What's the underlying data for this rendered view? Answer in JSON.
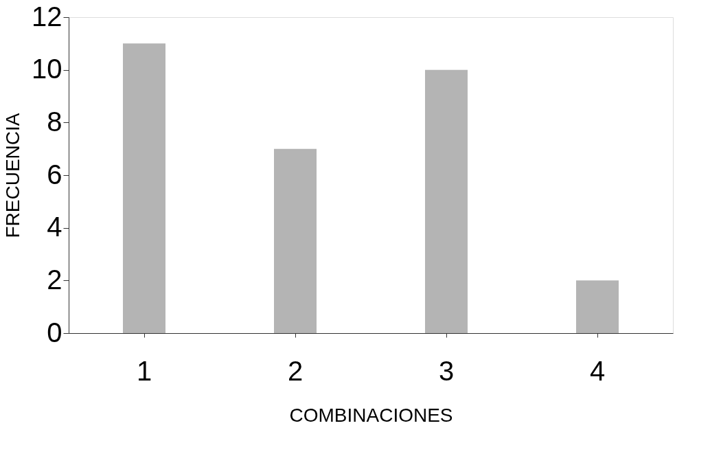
{
  "chart_data": {
    "type": "bar",
    "xlabel": "COMBINACIONES",
    "ylabel": "FRECUENCIA",
    "categories": [
      "1",
      "2",
      "3",
      "4"
    ],
    "values": [
      11,
      7,
      10,
      2
    ],
    "color": "#b4b4b4",
    "ylim": [
      0,
      12
    ],
    "yticks": [
      0,
      2,
      4,
      6,
      8,
      10,
      12
    ],
    "grid": false
  }
}
